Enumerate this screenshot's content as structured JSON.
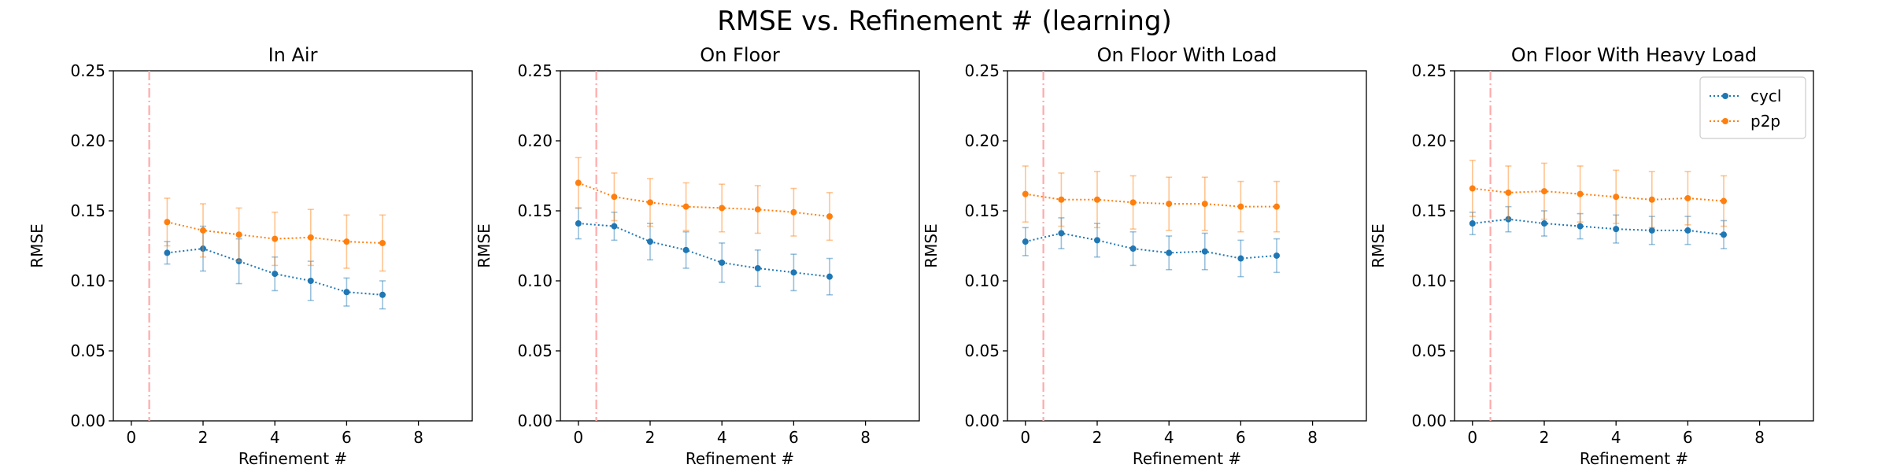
{
  "figure": {
    "title": "RMSE vs. Refinement # (learning)"
  },
  "colors": {
    "cycl": "#1f77b4",
    "p2p": "#ff7f0e",
    "vline": "#ffaaaa",
    "axis": "#000000"
  },
  "chart_data": [
    {
      "type": "line",
      "title": "In Air",
      "xlabel": "Refinement #",
      "ylabel": "RMSE",
      "xlim": [
        -0.5,
        9.5
      ],
      "ylim": [
        0,
        0.25
      ],
      "xticks": [
        0,
        2,
        4,
        6,
        8
      ],
      "yticks": [
        0.0,
        0.05,
        0.1,
        0.15,
        0.2,
        0.25
      ],
      "vline_x": 0.5,
      "legend": null,
      "series": [
        {
          "name": "cycl",
          "x": [
            1,
            2,
            3,
            4,
            5,
            6,
            7
          ],
          "y": [
            0.12,
            0.123,
            0.114,
            0.105,
            0.1,
            0.092,
            0.09
          ],
          "err": [
            0.008,
            0.016,
            0.016,
            0.012,
            0.014,
            0.01,
            0.01
          ]
        },
        {
          "name": "p2p",
          "x": [
            1,
            2,
            3,
            4,
            5,
            6,
            7
          ],
          "y": [
            0.142,
            0.136,
            0.133,
            0.13,
            0.131,
            0.128,
            0.127
          ],
          "err": [
            0.017,
            0.019,
            0.019,
            0.019,
            0.02,
            0.019,
            0.02
          ]
        }
      ]
    },
    {
      "type": "line",
      "title": "On Floor",
      "xlabel": "Refinement #",
      "ylabel": "RMSE",
      "xlim": [
        -0.5,
        9.5
      ],
      "ylim": [
        0,
        0.25
      ],
      "xticks": [
        0,
        2,
        4,
        6,
        8
      ],
      "yticks": [
        0.0,
        0.05,
        0.1,
        0.15,
        0.2,
        0.25
      ],
      "vline_x": 0.5,
      "legend": null,
      "series": [
        {
          "name": "cycl",
          "x": [
            0,
            1,
            2,
            3,
            4,
            5,
            6,
            7
          ],
          "y": [
            0.141,
            0.139,
            0.128,
            0.122,
            0.113,
            0.109,
            0.106,
            0.103
          ],
          "err": [
            0.011,
            0.01,
            0.013,
            0.013,
            0.014,
            0.013,
            0.013,
            0.013
          ]
        },
        {
          "name": "p2p",
          "x": [
            0,
            1,
            2,
            3,
            4,
            5,
            6,
            7
          ],
          "y": [
            0.17,
            0.16,
            0.156,
            0.153,
            0.152,
            0.151,
            0.149,
            0.146
          ],
          "err": [
            0.018,
            0.017,
            0.017,
            0.017,
            0.017,
            0.017,
            0.017,
            0.017
          ]
        }
      ]
    },
    {
      "type": "line",
      "title": "On Floor With Load",
      "xlabel": "Refinement #",
      "ylabel": "RMSE",
      "xlim": [
        -0.5,
        9.5
      ],
      "ylim": [
        0,
        0.25
      ],
      "xticks": [
        0,
        2,
        4,
        6,
        8
      ],
      "yticks": [
        0.0,
        0.05,
        0.1,
        0.15,
        0.2,
        0.25
      ],
      "vline_x": 0.5,
      "legend": null,
      "series": [
        {
          "name": "cycl",
          "x": [
            0,
            1,
            2,
            3,
            4,
            5,
            6,
            7
          ],
          "y": [
            0.128,
            0.134,
            0.129,
            0.123,
            0.12,
            0.121,
            0.116,
            0.118
          ],
          "err": [
            0.01,
            0.011,
            0.012,
            0.012,
            0.012,
            0.013,
            0.013,
            0.012
          ]
        },
        {
          "name": "p2p",
          "x": [
            0,
            1,
            2,
            3,
            4,
            5,
            6,
            7
          ],
          "y": [
            0.162,
            0.158,
            0.158,
            0.156,
            0.155,
            0.155,
            0.153,
            0.153
          ],
          "err": [
            0.02,
            0.019,
            0.02,
            0.019,
            0.019,
            0.019,
            0.018,
            0.018
          ]
        }
      ]
    },
    {
      "type": "line",
      "title": "On Floor With Heavy Load",
      "xlabel": "Refinement #",
      "ylabel": "RMSE",
      "xlim": [
        -0.5,
        9.5
      ],
      "ylim": [
        0,
        0.25
      ],
      "xticks": [
        0,
        2,
        4,
        6,
        8
      ],
      "yticks": [
        0.0,
        0.05,
        0.1,
        0.15,
        0.2,
        0.25
      ],
      "vline_x": 0.5,
      "legend": "top-right",
      "series": [
        {
          "name": "cycl",
          "x": [
            0,
            1,
            2,
            3,
            4,
            5,
            6,
            7
          ],
          "y": [
            0.141,
            0.144,
            0.141,
            0.139,
            0.137,
            0.136,
            0.136,
            0.133
          ],
          "err": [
            0.008,
            0.009,
            0.009,
            0.009,
            0.01,
            0.01,
            0.01,
            0.01
          ]
        },
        {
          "name": "p2p",
          "x": [
            0,
            1,
            2,
            3,
            4,
            5,
            6,
            7
          ],
          "y": [
            0.166,
            0.163,
            0.164,
            0.162,
            0.16,
            0.158,
            0.159,
            0.157
          ],
          "err": [
            0.02,
            0.019,
            0.02,
            0.02,
            0.019,
            0.02,
            0.019,
            0.018
          ]
        }
      ]
    }
  ]
}
